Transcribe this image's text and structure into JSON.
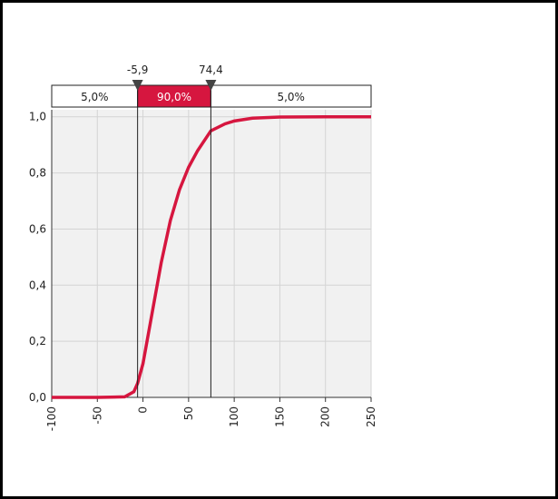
{
  "chart_data": {
    "type": "line",
    "x": [
      -100,
      -50,
      -20,
      -10,
      -5.9,
      0,
      10,
      20,
      30,
      40,
      50,
      60,
      74.4,
      90,
      100,
      120,
      150,
      200,
      250
    ],
    "values": [
      0,
      0,
      0.002,
      0.02,
      0.05,
      0.12,
      0.3,
      0.48,
      0.63,
      0.74,
      0.82,
      0.88,
      0.95,
      0.975,
      0.985,
      0.995,
      0.999,
      1,
      1
    ],
    "color": "#d6163f",
    "xlim": [
      -100,
      250
    ],
    "xticks": [
      -100,
      -50,
      0,
      50,
      100,
      150,
      200,
      250
    ],
    "ylim": [
      0,
      1.025
    ],
    "yticks": [
      {
        "value": 0,
        "label": "0,0"
      },
      {
        "value": 0.2,
        "label": "0,2"
      },
      {
        "value": 0.4,
        "label": "0,4"
      },
      {
        "value": 0.6,
        "label": "0,6"
      },
      {
        "value": 0.8,
        "label": "0,8"
      },
      {
        "value": 1,
        "label": "1,0"
      }
    ],
    "grid": true,
    "delimiters": [
      {
        "value": -5.9,
        "label": "-5,9"
      },
      {
        "value": 74.4,
        "label": "74,4"
      }
    ],
    "band": [
      {
        "value": 5,
        "label": "5,0%"
      },
      {
        "value": 90,
        "label": "90,0%"
      },
      {
        "value": 5,
        "label": "5,0%"
      }
    ]
  }
}
